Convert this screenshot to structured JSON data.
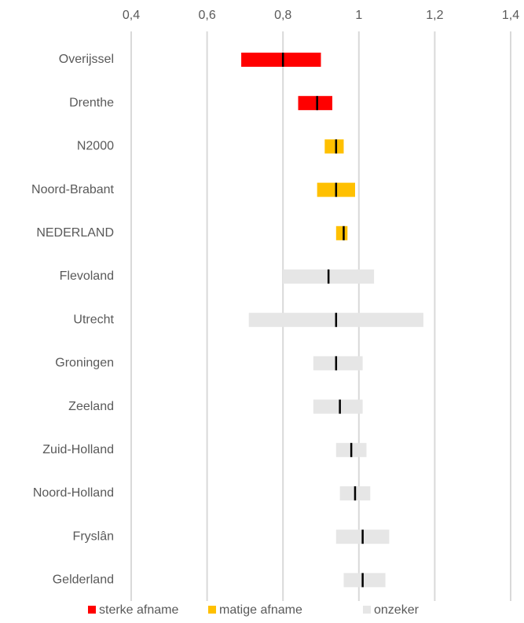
{
  "chart_data": {
    "type": "range",
    "xlim": [
      0.4,
      1.4
    ],
    "xticks": [
      {
        "value": 0.4,
        "label": "0,4"
      },
      {
        "value": 0.6,
        "label": "0,6"
      },
      {
        "value": 0.8,
        "label": "0,8"
      },
      1,
      {
        "value": 1.2,
        "label": "1,2"
      },
      {
        "value": 1.4,
        "label": "1,4"
      }
    ],
    "grid": true,
    "legend": "bottom",
    "series": [
      {
        "name": "sterke afname",
        "color": "#ff0000",
        "categories": [
          "Overijssel",
          "Drenthe"
        ],
        "low": [
          0.69,
          0.84
        ],
        "estimate": [
          0.8,
          0.89
        ],
        "high": [
          0.9,
          0.93
        ]
      },
      {
        "name": "matige afname",
        "color": "#ffc000",
        "categories": [
          "N2000",
          "Noord-Brabant",
          "NEDERLAND"
        ],
        "low": [
          0.91,
          0.89,
          0.94
        ],
        "estimate": [
          0.94,
          0.94,
          0.96
        ],
        "high": [
          0.96,
          0.99,
          0.97
        ]
      },
      {
        "name": "onzeker",
        "color": "#e6e6e6",
        "categories": [
          "Flevoland",
          "Utrecht",
          "Groningen",
          "Zeeland",
          "Zuid-Holland",
          "Noord-Holland",
          "Fryslân",
          "Gelderland"
        ],
        "low": [
          0.8,
          0.71,
          0.88,
          0.88,
          0.94,
          0.95,
          0.94,
          0.96
        ],
        "estimate": [
          0.92,
          0.94,
          0.94,
          0.95,
          0.98,
          0.99,
          1.01,
          1.01
        ],
        "high": [
          1.04,
          1.17,
          1.01,
          1.01,
          1.02,
          1.03,
          1.08,
          1.07
        ]
      }
    ]
  }
}
